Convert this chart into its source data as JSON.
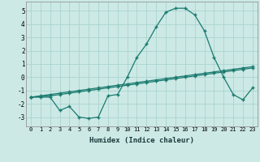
{
  "xlabel": "Humidex (Indice chaleur)",
  "x": [
    0,
    1,
    2,
    3,
    4,
    5,
    6,
    7,
    8,
    9,
    10,
    11,
    12,
    13,
    14,
    15,
    16,
    17,
    18,
    19,
    20,
    21,
    22,
    23
  ],
  "line1": [
    -1.5,
    -1.5,
    -1.5,
    -2.5,
    -2.2,
    -3.0,
    -3.1,
    -3.0,
    -1.4,
    -1.3,
    0.0,
    1.5,
    2.5,
    3.8,
    4.9,
    5.2,
    5.2,
    4.7,
    3.5,
    1.5,
    0.0,
    -1.3,
    -1.7,
    -0.8
  ],
  "line2": [
    -1.5,
    -1.4,
    -1.3,
    -1.2,
    -1.1,
    -1.0,
    -0.9,
    -0.8,
    -0.7,
    -0.6,
    -0.5,
    -0.4,
    -0.3,
    -0.2,
    -0.1,
    0.0,
    0.1,
    0.2,
    0.3,
    0.4,
    0.5,
    0.6,
    0.7,
    0.8
  ],
  "line3": [
    -1.5,
    -1.45,
    -1.4,
    -1.3,
    -1.2,
    -1.1,
    -1.0,
    -0.9,
    -0.8,
    -0.7,
    -0.6,
    -0.5,
    -0.4,
    -0.3,
    -0.2,
    -0.1,
    0.0,
    0.1,
    0.2,
    0.3,
    0.4,
    0.5,
    0.6,
    0.7
  ],
  "bg_color": "#cce9e6",
  "grid_color": "#aad4d0",
  "line_color": "#1a7a6e",
  "ylim": [
    -3.7,
    5.7
  ],
  "yticks": [
    -3,
    -2,
    -1,
    0,
    1,
    2,
    3,
    4,
    5
  ],
  "xlim": [
    -0.5,
    23.5
  ],
  "marker": "+"
}
